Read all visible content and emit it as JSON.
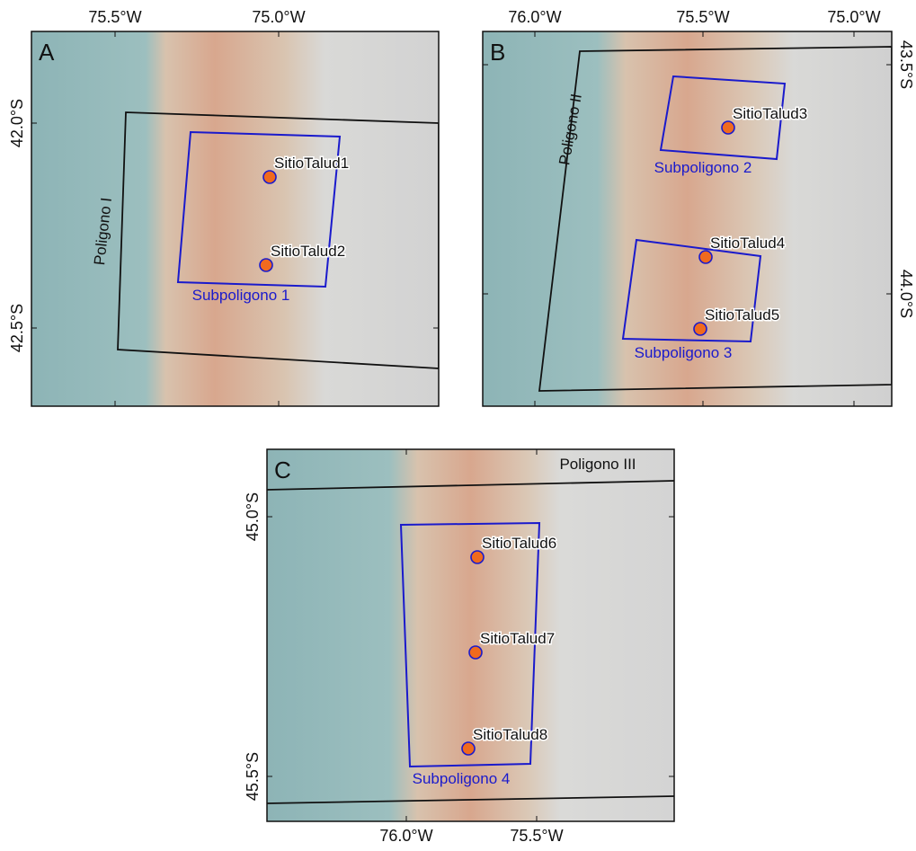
{
  "panels": [
    {
      "label": "A",
      "x_ticks": [
        "75.5°W",
        "75.0°W"
      ],
      "y_ticks": [
        "42.0°S",
        "42.5°S"
      ],
      "polygon_label": "Poligono I",
      "subpolygons": [
        {
          "label": "Subpoligono 1"
        }
      ],
      "sites": [
        "SitioTalud1",
        "SitioTalud2"
      ]
    },
    {
      "label": "B",
      "x_ticks": [
        "76.0°W",
        "75.5°W",
        "75.0°W"
      ],
      "y_ticks": [
        "43.5°S",
        "44.0°S"
      ],
      "polygon_label": "Poligono II",
      "subpolygons": [
        {
          "label": "Subpoligono 2"
        },
        {
          "label": "Subpoligono 3"
        }
      ],
      "sites": [
        "SitioTalud3",
        "SitioTalud4",
        "SitioTalud5"
      ]
    },
    {
      "label": "C",
      "x_ticks": [
        "76.0°W",
        "75.5°W"
      ],
      "y_ticks": [
        "45.0°S",
        "45.5°S"
      ],
      "polygon_label": "Poligono III",
      "subpolygons": [
        {
          "label": "Subpoligono 4"
        }
      ],
      "sites": [
        "SitioTalud6",
        "SitioTalud7",
        "SitioTalud8"
      ]
    }
  ]
}
